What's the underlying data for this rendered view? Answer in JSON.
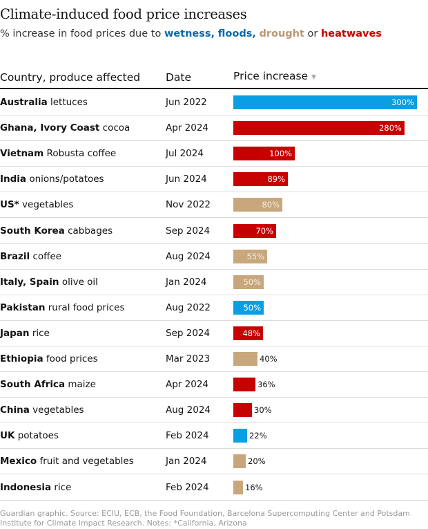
{
  "header": {
    "title": "Climate-induced food price increases",
    "subtitle_prefix": "% increase in food prices due to ",
    "wetness": "wetness,",
    "floods": "floods,",
    "drought": "drought",
    "or_text": " or ",
    "heatwaves": "heatwaves"
  },
  "table": {
    "col_country": "Country, produce affected",
    "col_date": "Date",
    "col_price": "Price increase",
    "sort_icon": "▼"
  },
  "colors": {
    "wet": "#0a9ee3",
    "heat": "#c70000",
    "drought": "#c9a77c"
  },
  "chart_data": {
    "type": "bar",
    "orientation": "horizontal",
    "unit": "%",
    "xlim": [
      0,
      300
    ],
    "rows": [
      {
        "country": "Australia",
        "produce": "lettuces",
        "date": "Jun 2022",
        "value": 300,
        "label": "300%",
        "cause": "wet"
      },
      {
        "country": "Ghana, Ivory Coast",
        "produce": "cocoa",
        "date": "Apr 2024",
        "value": 280,
        "label": "280%",
        "cause": "heat"
      },
      {
        "country": "Vietnam",
        "produce": "Robusta coffee",
        "date": "Jul 2024",
        "value": 100,
        "label": "100%",
        "cause": "heat"
      },
      {
        "country": "India",
        "produce": "onions/potatoes",
        "date": "Jun 2024",
        "value": 89,
        "label": "89%",
        "cause": "heat"
      },
      {
        "country": "US*",
        "produce": "vegetables",
        "date": "Nov 2022",
        "value": 80,
        "label": "80%",
        "cause": "drought"
      },
      {
        "country": "South Korea",
        "produce": "cabbages",
        "date": "Sep 2024",
        "value": 70,
        "label": "70%",
        "cause": "heat"
      },
      {
        "country": "Brazil",
        "produce": "coffee",
        "date": "Aug 2024",
        "value": 55,
        "label": "55%",
        "cause": "drought"
      },
      {
        "country": "Italy, Spain",
        "produce": "olive oil",
        "date": "Jan 2024",
        "value": 50,
        "label": "50%",
        "cause": "drought"
      },
      {
        "country": "Pakistan",
        "produce": "rural food prices",
        "date": "Aug 2022",
        "value": 50,
        "label": "50%",
        "cause": "wet"
      },
      {
        "country": "Japan",
        "produce": "rice",
        "date": "Sep 2024",
        "value": 48,
        "label": "48%",
        "cause": "heat"
      },
      {
        "country": "Ethiopia",
        "produce": "food prices",
        "date": "Mar 2023",
        "value": 40,
        "label": "40%",
        "cause": "drought"
      },
      {
        "country": "South Africa",
        "produce": "maize",
        "date": "Apr 2024",
        "value": 36,
        "label": "36%",
        "cause": "heat"
      },
      {
        "country": "China",
        "produce": "vegetables",
        "date": "Aug 2024",
        "value": 30,
        "label": "30%",
        "cause": "heat"
      },
      {
        "country": "UK",
        "produce": "potatoes",
        "date": "Feb 2024",
        "value": 22,
        "label": "22%",
        "cause": "wet"
      },
      {
        "country": "Mexico",
        "produce": "fruit and vegetables",
        "date": "Jan 2024",
        "value": 20,
        "label": "20%",
        "cause": "drought"
      },
      {
        "country": "Indonesia",
        "produce": "rice",
        "date": "Feb 2024",
        "value": 16,
        "label": "16%",
        "cause": "drought"
      }
    ]
  },
  "footer": {
    "text": "Guardian graphic. Source: ECIU, ECB, the Food Foundation, Barcelona Supercomputing Center and Potsdam Institute for Climate Impact Research. Notes: *California, Arizona"
  }
}
